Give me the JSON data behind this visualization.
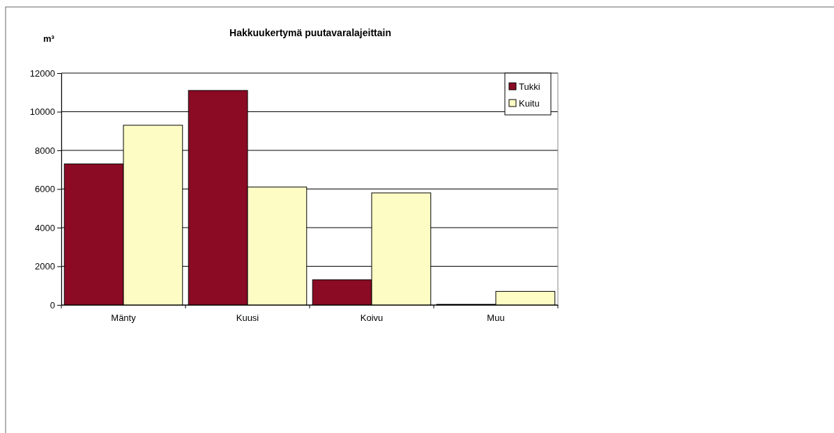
{
  "chart_data": {
    "type": "bar",
    "title": "Hakkuukertymä puutavaralajeittain",
    "ylabel": "m³",
    "categories": [
      "Mänty",
      "Kuusi",
      "Koivu",
      "Muu"
    ],
    "series": [
      {
        "name": "Tukki",
        "color": "#8b0a24",
        "values": [
          7300,
          11100,
          1300,
          30
        ]
      },
      {
        "name": "Kuitu",
        "color": "#fdfcc4",
        "values": [
          9300,
          6100,
          5800,
          700
        ]
      }
    ],
    "ylim": [
      0,
      12000
    ],
    "yticks": [
      0,
      2000,
      4000,
      6000,
      8000,
      10000,
      12000
    ],
    "grid": "y",
    "legend": "top right"
  }
}
